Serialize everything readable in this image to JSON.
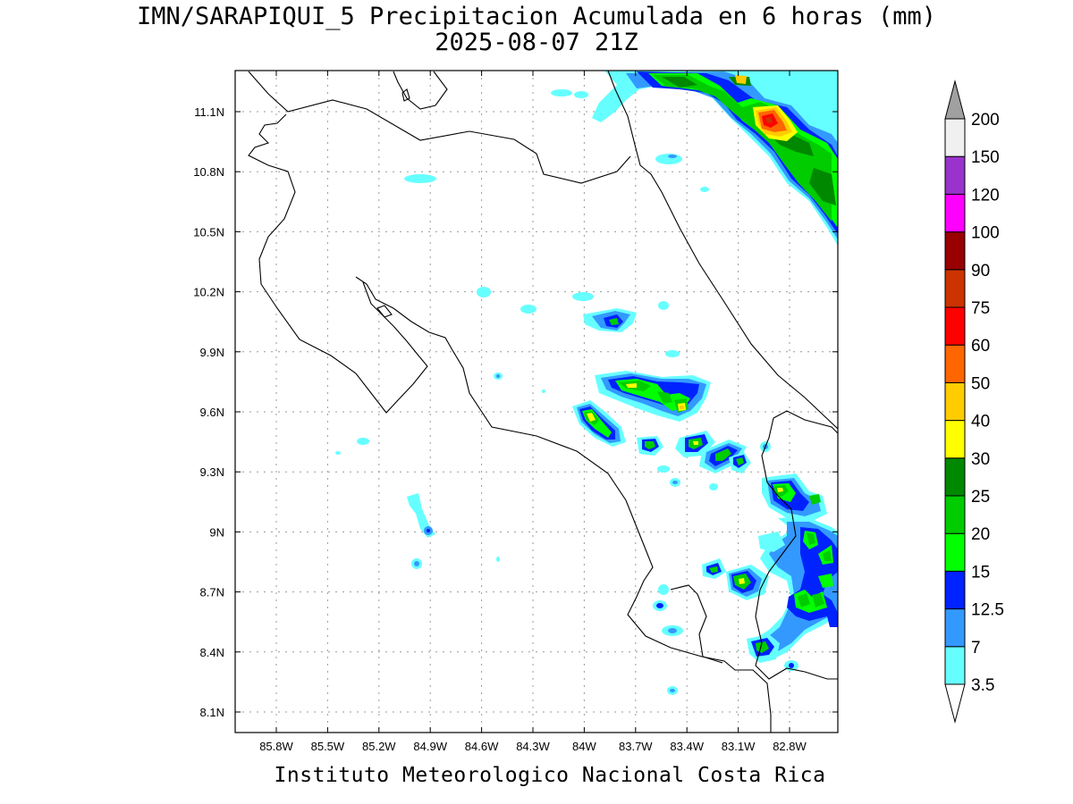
{
  "title": {
    "line1": "IMN/SARAPIQUI_5 Precipitacion Acumulada en 6 horas (mm)",
    "line2": "2025-08-07 21Z"
  },
  "footer": "Instituto Meteorologico Nacional Costa Rica",
  "map": {
    "lon_range": [
      -86.0,
      -83.0
    ],
    "lat_range": [
      8.0,
      11.3
    ],
    "lon_ticks": [
      "85.8W",
      "85.5W",
      "85.2W",
      "84.9W",
      "84.6W",
      "84.3W",
      "84W",
      "83.7W",
      "83.4W",
      "83.1W",
      "82.8W"
    ],
    "lat_ticks": [
      "11.1N",
      "10.8N",
      "10.5N",
      "10.2N",
      "9.9N",
      "9.6N",
      "9.3N",
      "9N",
      "8.7N",
      "8.4N",
      "8.1N"
    ],
    "grid": true
  },
  "colorbar": {
    "labels": [
      "3.5",
      "7",
      "12.5",
      "15",
      "20",
      "25",
      "30",
      "40",
      "50",
      "60",
      "75",
      "90",
      "100",
      "120",
      "150",
      "200"
    ],
    "colors": [
      "#66ffff",
      "#3399ff",
      "#0022ff",
      "#00ff00",
      "#00cc00",
      "#008800",
      "#ffff00",
      "#ffcc00",
      "#ff6600",
      "#ff0000",
      "#cc3300",
      "#990000",
      "#ff00ff",
      "#9933cc",
      "#f0f0f0",
      "#a0a0a0"
    ]
  },
  "precip_colors": {
    "cyan": "#66ffff",
    "lightblue": "#3399ff",
    "blue": "#0022ff",
    "green15": "#00ff00",
    "green20": "#00cc00",
    "green25": "#008800",
    "yellow": "#ffff00",
    "gold": "#ffcc00",
    "orange": "#ff6600",
    "red": "#ff0000",
    "darkorange": "#cc3300"
  }
}
